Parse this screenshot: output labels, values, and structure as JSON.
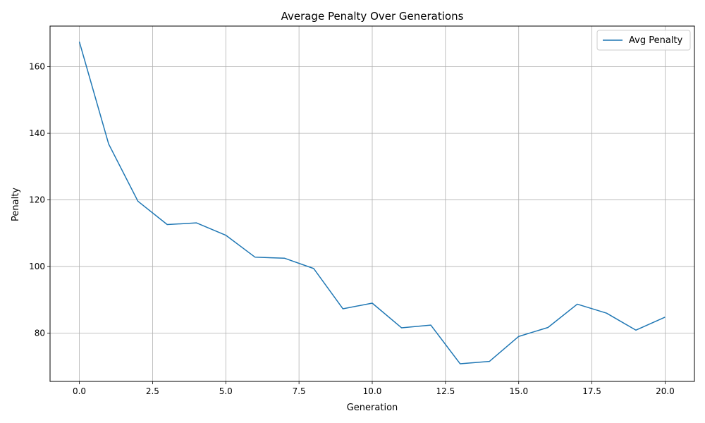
{
  "chart_data": {
    "type": "line",
    "title": "Average Penalty Over Generations",
    "xlabel": "Generation",
    "ylabel": "Penalty",
    "xlim": [
      -1.0,
      21.0
    ],
    "ylim": [
      65.5,
      172.2
    ],
    "xticks": [
      0.0,
      2.5,
      5.0,
      7.5,
      10.0,
      12.5,
      15.0,
      17.5,
      20.0
    ],
    "xtick_labels": [
      "0.0",
      "2.5",
      "5.0",
      "7.5",
      "10.0",
      "12.5",
      "15.0",
      "17.5",
      "20.0"
    ],
    "yticks": [
      80,
      100,
      120,
      140,
      160
    ],
    "ytick_labels": [
      "80",
      "100",
      "120",
      "140",
      "160"
    ],
    "grid": true,
    "legend_position": "top-right",
    "series": [
      {
        "name": "Avg Penalty",
        "color": "#1f77b4",
        "x": [
          0,
          1,
          2,
          3,
          4,
          5,
          6,
          7,
          8,
          9,
          10,
          11,
          12,
          13,
          14,
          15,
          16,
          17,
          18,
          19,
          20
        ],
        "values": [
          167.5,
          136.8,
          119.6,
          112.6,
          113.1,
          109.4,
          102.8,
          102.5,
          99.4,
          87.3,
          89.0,
          81.6,
          82.4,
          70.8,
          71.5,
          79.0,
          81.7,
          88.7,
          86.0,
          80.9,
          84.8
        ]
      }
    ]
  }
}
